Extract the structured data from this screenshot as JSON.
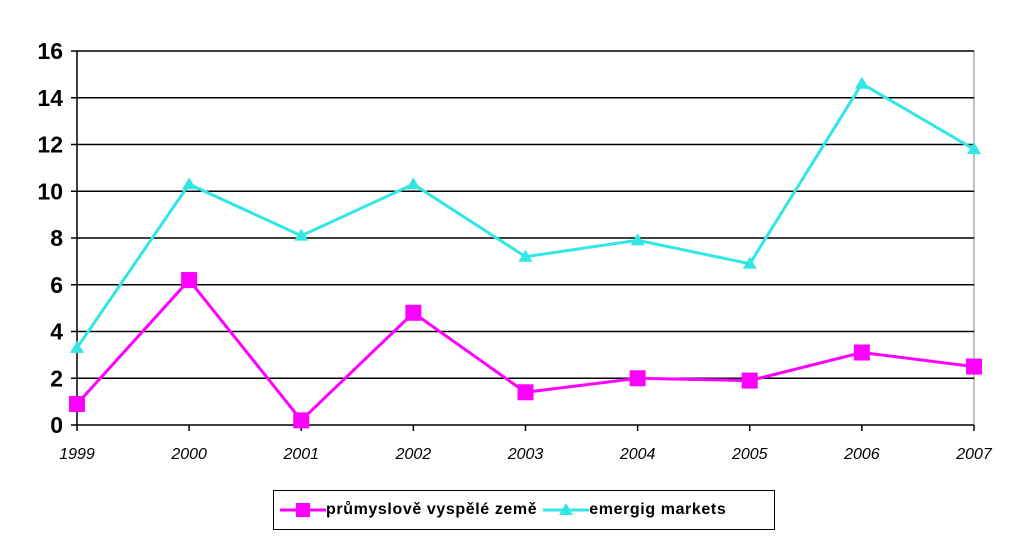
{
  "chart_data": {
    "type": "line",
    "categories": [
      "1999",
      "2000",
      "2001",
      "2002",
      "2003",
      "2004",
      "2005",
      "2006",
      "2007"
    ],
    "ylim": [
      0,
      16
    ],
    "yticks": [
      0,
      2,
      4,
      6,
      8,
      10,
      12,
      14,
      16
    ],
    "grid": true,
    "legend_position": "bottom",
    "title": "",
    "xlabel": "",
    "ylabel": "",
    "series": [
      {
        "name": "průmyslově vyspělé země",
        "color": "#FF00FF",
        "marker": "square",
        "values": [
          0.9,
          6.2,
          0.2,
          4.8,
          1.4,
          2.0,
          1.9,
          3.1,
          2.5
        ]
      },
      {
        "name": "emergig markets",
        "color": "#33E6E6",
        "marker": "triangle",
        "values": [
          3.3,
          10.3,
          8.1,
          10.3,
          7.2,
          7.9,
          6.9,
          14.6,
          11.8
        ]
      }
    ]
  }
}
